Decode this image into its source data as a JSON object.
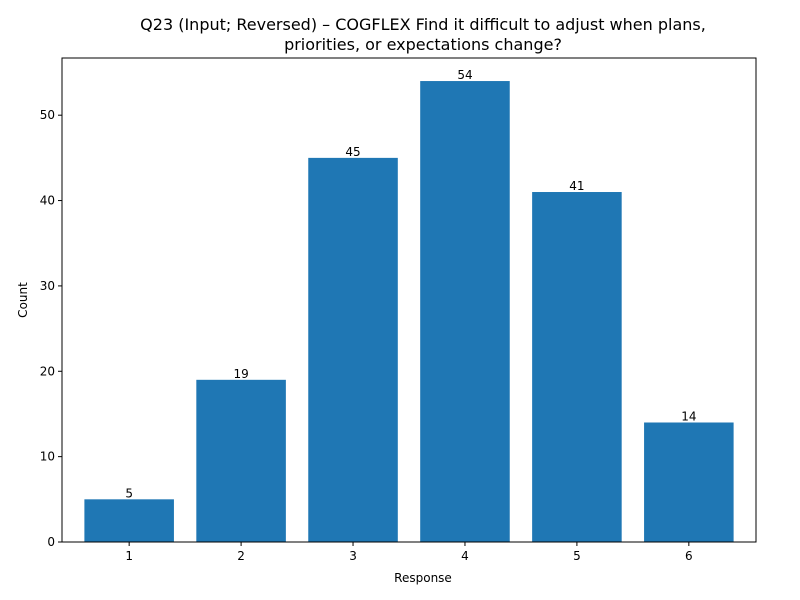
{
  "chart_data": {
    "type": "bar",
    "title_lines": [
      "Q23 (Input; Reversed) – COGFLEX Find it difficult to adjust when plans,",
      "priorities, or expectations change?"
    ],
    "xlabel": "Response",
    "ylabel": "Count",
    "categories": [
      "1",
      "2",
      "3",
      "4",
      "5",
      "6"
    ],
    "values": [
      5,
      19,
      45,
      54,
      41,
      14
    ],
    "data_labels": [
      "5",
      "19",
      "45",
      "54",
      "41",
      "14"
    ],
    "yticks": [
      0,
      10,
      20,
      30,
      40,
      50
    ],
    "ylim": [
      0,
      56.7
    ],
    "grid": false,
    "bar_color": "#1f77b4"
  }
}
